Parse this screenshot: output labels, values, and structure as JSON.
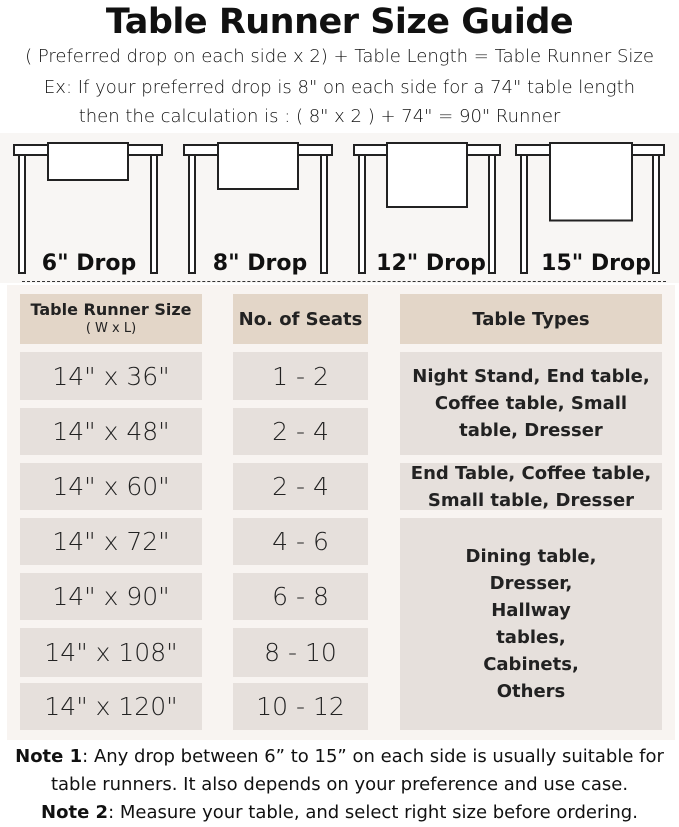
{
  "title": "Table Runner Size Guide",
  "formula": "( Preferred drop on each side x 2) + Table Length = Table Runner Size",
  "example_line1": "Ex: If your preferred drop is 8\" on each side for a 74\" table length",
  "example_line2": "then the calculation is : ( 8\" x 2 ) + 74\" = 90\" Runner",
  "drops": [
    {
      "label": "6\" Drop",
      "inches": 6
    },
    {
      "label": "8\" Drop",
      "inches": 8
    },
    {
      "label": "12\" Drop",
      "inches": 12
    },
    {
      "label": "15\" Drop",
      "inches": 15
    }
  ],
  "table": {
    "headers": {
      "size": "Table Runner Size",
      "size_sub": "( W x L)",
      "seats": "No. of Seats",
      "types": "Table Types"
    },
    "rows": [
      {
        "size": "14\" x 36\"",
        "seats": "1 - 2"
      },
      {
        "size": "14\" x 48\"",
        "seats": "2 - 4"
      },
      {
        "size": "14\" x 60\"",
        "seats": "2 - 4"
      },
      {
        "size": "14\" x 72\"",
        "seats": "4 - 6"
      },
      {
        "size": "14\" x 90\"",
        "seats": "6 - 8"
      },
      {
        "size": "14\" x 108\"",
        "seats": "8 - 10"
      },
      {
        "size": "14\" x 120\"",
        "seats": "10 - 12"
      }
    ],
    "types": [
      "Night Stand, End table, Coffee table, Small table, Dresser",
      "End Table, Coffee table, Small table, Dresser",
      "Dining table, Dresser, Hallway tables, Cabinets, Others"
    ]
  },
  "notes": {
    "note1_label": "Note 1",
    "note1_text": ": Any drop between 6” to 15” on each side is usually suitable for",
    "note1_text2": "table runners. It also depends on your preference and use case.",
    "note2_label": "Note 2",
    "note2_text": ": Measure your table, and select right size before ordering."
  },
  "colors": {
    "header_cell": "#e3d6c8",
    "body_cell": "#e6e0dc",
    "panel": "#f8f4f1"
  }
}
